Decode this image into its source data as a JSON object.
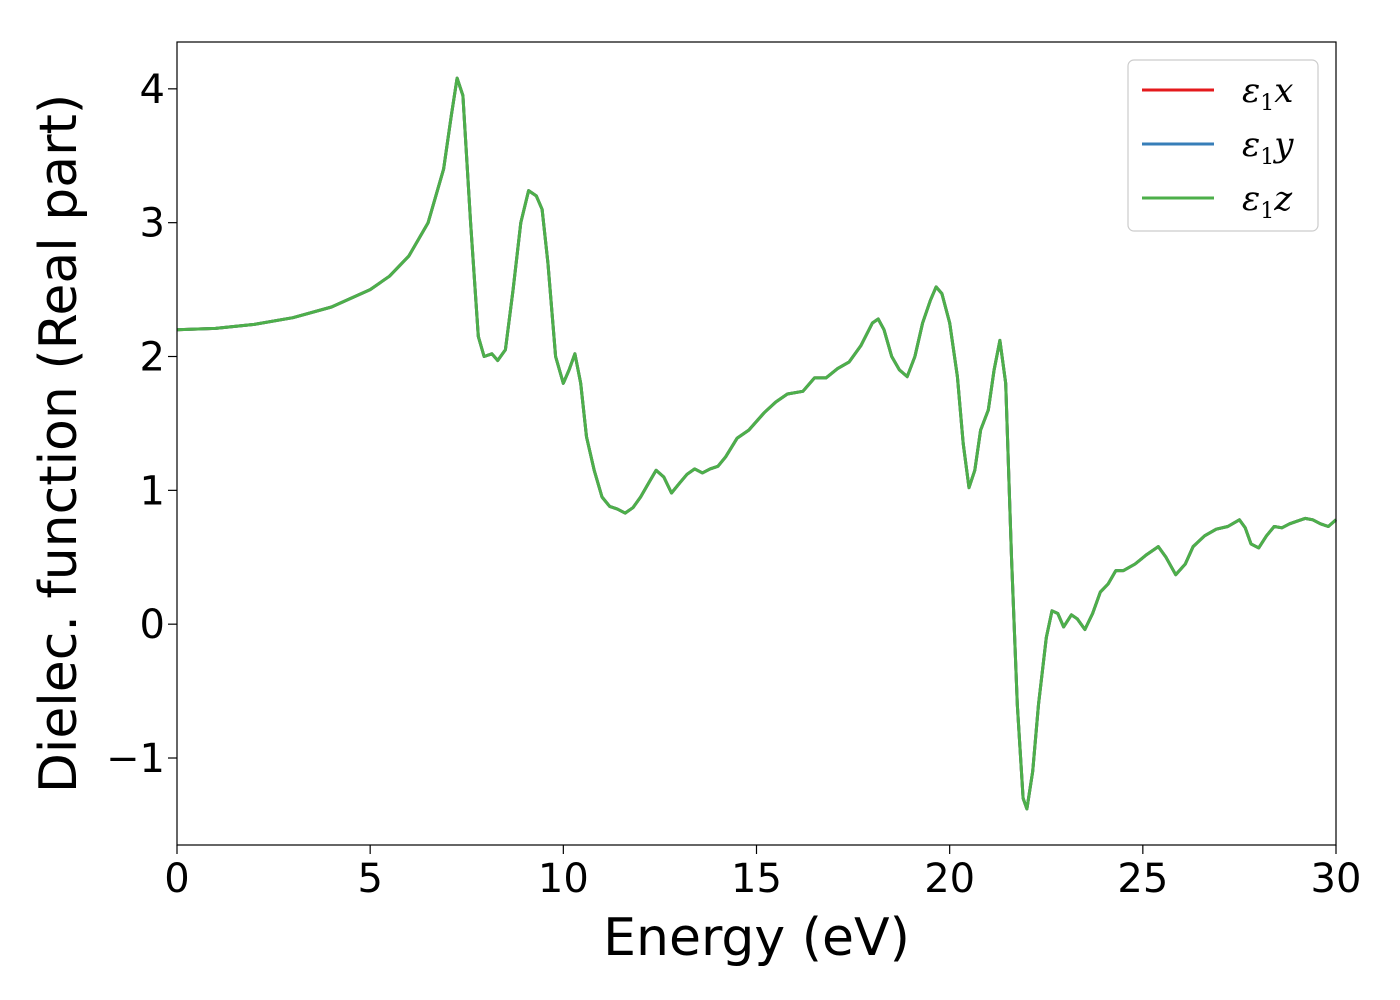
{
  "chart_data": {
    "type": "line",
    "title": "",
    "xlabel": "Energy (eV)",
    "ylabel": "Dielec. function (Real part)",
    "xlim": [
      0,
      30
    ],
    "ylim": [
      -1.65,
      4.35
    ],
    "xticks": [
      0,
      5,
      10,
      15,
      20,
      25,
      30
    ],
    "xtick_labels": [
      "0",
      "5",
      "10",
      "15",
      "20",
      "25",
      "30"
    ],
    "yticks": [
      -1,
      0,
      1,
      2,
      3,
      4
    ],
    "ytick_labels": [
      "−1",
      "0",
      "1",
      "2",
      "3",
      "4"
    ],
    "grid": false,
    "legend_position": "top-right",
    "legend": [
      {
        "base": "ε",
        "sub": "1",
        "var": "x",
        "color": "#e41a1c"
      },
      {
        "base": "ε",
        "sub": "1",
        "var": "y",
        "color": "#377eb8"
      },
      {
        "base": "ε",
        "sub": "1",
        "var": "z",
        "color": "#4daf4a"
      }
    ],
    "x": [
      0,
      1,
      2,
      3,
      4,
      5,
      5.5,
      6,
      6.5,
      6.9,
      7.1,
      7.25,
      7.4,
      7.6,
      7.8,
      7.95,
      8.15,
      8.3,
      8.5,
      8.7,
      8.9,
      9.1,
      9.3,
      9.45,
      9.6,
      9.8,
      10.0,
      10.15,
      10.3,
      10.45,
      10.6,
      10.8,
      11.0,
      11.2,
      11.4,
      11.6,
      11.8,
      12.0,
      12.2,
      12.4,
      12.6,
      12.8,
      13.0,
      13.2,
      13.4,
      13.6,
      13.8,
      14.0,
      14.2,
      14.5,
      14.8,
      15.2,
      15.5,
      15.8,
      16.2,
      16.5,
      16.8,
      17.1,
      17.4,
      17.7,
      18.0,
      18.15,
      18.3,
      18.5,
      18.7,
      18.9,
      19.1,
      19.3,
      19.5,
      19.65,
      19.8,
      20.0,
      20.2,
      20.35,
      20.5,
      20.65,
      20.8,
      21.0,
      21.15,
      21.3,
      21.45,
      21.6,
      21.75,
      21.9,
      22.0,
      22.15,
      22.3,
      22.5,
      22.65,
      22.8,
      22.95,
      23.15,
      23.3,
      23.5,
      23.7,
      23.9,
      24.1,
      24.3,
      24.5,
      24.8,
      25.1,
      25.4,
      25.6,
      25.85,
      26.1,
      26.3,
      26.6,
      26.9,
      27.2,
      27.5,
      27.65,
      27.8,
      28.0,
      28.2,
      28.4,
      28.6,
      28.8,
      29.0,
      29.2,
      29.4,
      29.6,
      29.8,
      30.0
    ],
    "series": [
      {
        "name": "ε1x",
        "color": "#e41a1c",
        "values": [
          2.2,
          2.21,
          2.24,
          2.29,
          2.37,
          2.5,
          2.6,
          2.75,
          3.0,
          3.4,
          3.8,
          4.08,
          3.95,
          3.0,
          2.15,
          2.0,
          2.02,
          1.97,
          2.05,
          2.5,
          3.0,
          3.24,
          3.2,
          3.1,
          2.7,
          2.0,
          1.8,
          1.9,
          2.02,
          1.8,
          1.4,
          1.15,
          0.95,
          0.88,
          0.86,
          0.83,
          0.87,
          0.95,
          1.05,
          1.15,
          1.1,
          0.98,
          1.05,
          1.12,
          1.16,
          1.13,
          1.16,
          1.18,
          1.25,
          1.39,
          1.45,
          1.58,
          1.66,
          1.72,
          1.74,
          1.84,
          1.84,
          1.91,
          1.96,
          2.08,
          2.25,
          2.28,
          2.2,
          2.0,
          1.9,
          1.85,
          2.0,
          2.25,
          2.42,
          2.52,
          2.47,
          2.25,
          1.85,
          1.35,
          1.02,
          1.15,
          1.45,
          1.6,
          1.9,
          2.12,
          1.8,
          0.5,
          -0.6,
          -1.3,
          -1.38,
          -1.1,
          -0.6,
          -0.1,
          0.1,
          0.08,
          -0.02,
          0.07,
          0.04,
          -0.04,
          0.08,
          0.24,
          0.3,
          0.4,
          0.4,
          0.45,
          0.52,
          0.58,
          0.5,
          0.37,
          0.45,
          0.58,
          0.66,
          0.71,
          0.73,
          0.78,
          0.72,
          0.6,
          0.57,
          0.66,
          0.73,
          0.72,
          0.75,
          0.77,
          0.79,
          0.78,
          0.75,
          0.73,
          0.78
        ]
      },
      {
        "name": "ε1y",
        "color": "#377eb8",
        "values": [
          2.2,
          2.21,
          2.24,
          2.29,
          2.37,
          2.5,
          2.6,
          2.75,
          3.0,
          3.4,
          3.8,
          4.08,
          3.95,
          3.0,
          2.15,
          2.0,
          2.02,
          1.97,
          2.05,
          2.5,
          3.0,
          3.24,
          3.2,
          3.1,
          2.7,
          2.0,
          1.8,
          1.9,
          2.02,
          1.8,
          1.4,
          1.15,
          0.95,
          0.88,
          0.86,
          0.83,
          0.87,
          0.95,
          1.05,
          1.15,
          1.1,
          0.98,
          1.05,
          1.12,
          1.16,
          1.13,
          1.16,
          1.18,
          1.25,
          1.39,
          1.45,
          1.58,
          1.66,
          1.72,
          1.74,
          1.84,
          1.84,
          1.91,
          1.96,
          2.08,
          2.25,
          2.28,
          2.2,
          2.0,
          1.9,
          1.85,
          2.0,
          2.25,
          2.42,
          2.52,
          2.47,
          2.25,
          1.85,
          1.35,
          1.02,
          1.15,
          1.45,
          1.6,
          1.9,
          2.12,
          1.8,
          0.5,
          -0.6,
          -1.3,
          -1.38,
          -1.1,
          -0.6,
          -0.1,
          0.1,
          0.08,
          -0.02,
          0.07,
          0.04,
          -0.04,
          0.08,
          0.24,
          0.3,
          0.4,
          0.4,
          0.45,
          0.52,
          0.58,
          0.5,
          0.37,
          0.45,
          0.58,
          0.66,
          0.71,
          0.73,
          0.78,
          0.72,
          0.6,
          0.57,
          0.66,
          0.73,
          0.72,
          0.75,
          0.77,
          0.79,
          0.78,
          0.75,
          0.73,
          0.78
        ]
      },
      {
        "name": "ε1z",
        "color": "#4daf4a",
        "values": [
          2.2,
          2.21,
          2.24,
          2.29,
          2.37,
          2.5,
          2.6,
          2.75,
          3.0,
          3.4,
          3.8,
          4.08,
          3.95,
          3.0,
          2.15,
          2.0,
          2.02,
          1.97,
          2.05,
          2.5,
          3.0,
          3.24,
          3.2,
          3.1,
          2.7,
          2.0,
          1.8,
          1.9,
          2.02,
          1.8,
          1.4,
          1.15,
          0.95,
          0.88,
          0.86,
          0.83,
          0.87,
          0.95,
          1.05,
          1.15,
          1.1,
          0.98,
          1.05,
          1.12,
          1.16,
          1.13,
          1.16,
          1.18,
          1.25,
          1.39,
          1.45,
          1.58,
          1.66,
          1.72,
          1.74,
          1.84,
          1.84,
          1.91,
          1.96,
          2.08,
          2.25,
          2.28,
          2.2,
          2.0,
          1.9,
          1.85,
          2.0,
          2.25,
          2.42,
          2.52,
          2.47,
          2.25,
          1.85,
          1.35,
          1.02,
          1.15,
          1.45,
          1.6,
          1.9,
          2.12,
          1.8,
          0.5,
          -0.6,
          -1.3,
          -1.38,
          -1.1,
          -0.6,
          -0.1,
          0.1,
          0.08,
          -0.02,
          0.07,
          0.04,
          -0.04,
          0.08,
          0.24,
          0.3,
          0.4,
          0.4,
          0.45,
          0.52,
          0.58,
          0.5,
          0.37,
          0.45,
          0.58,
          0.66,
          0.71,
          0.73,
          0.78,
          0.72,
          0.6,
          0.57,
          0.66,
          0.73,
          0.72,
          0.75,
          0.77,
          0.79,
          0.78,
          0.75,
          0.73,
          0.78
        ]
      }
    ]
  }
}
